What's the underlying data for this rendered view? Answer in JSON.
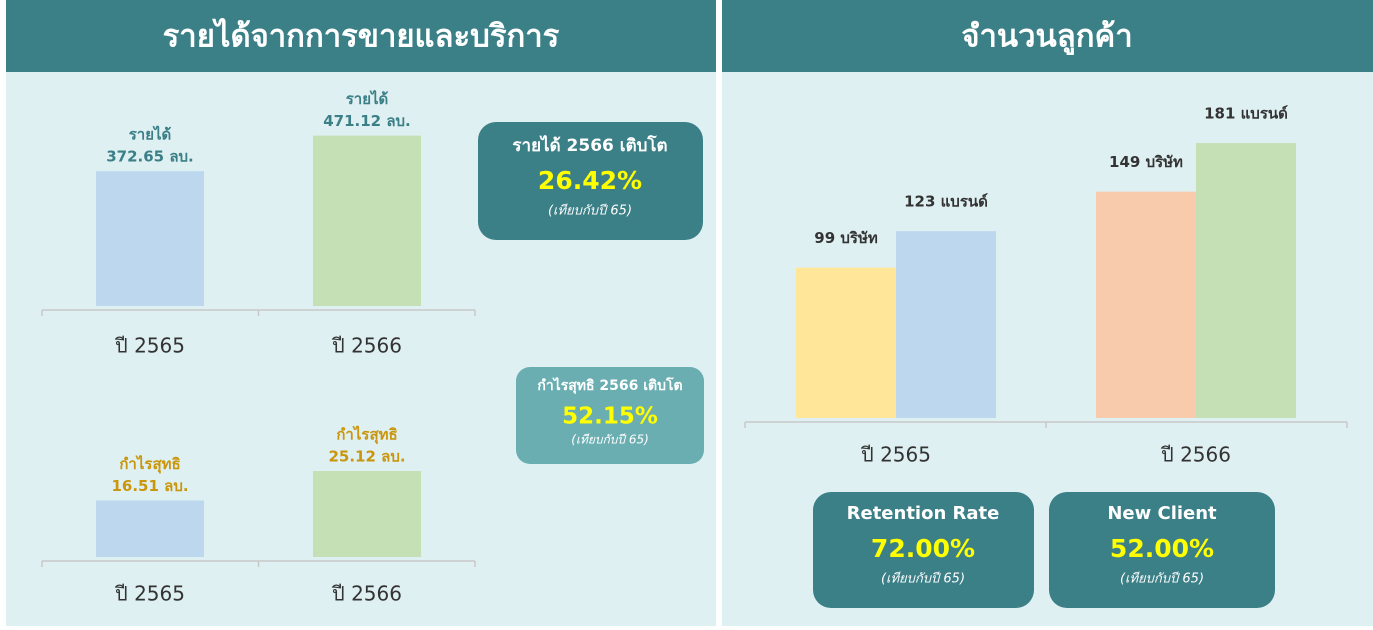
{
  "panels": [
    {
      "title": "รายได้จากการขายและบริการ"
    },
    {
      "title": "จำนวนลูกค้า"
    }
  ],
  "callouts": [
    {
      "title": "รายได้ 2566 เติบโต",
      "value": "26.42%",
      "note": "(เทียบกับปี 65)"
    },
    {
      "title": "กำไรสุทธิ 2566 เติบโต",
      "value": "52.15%",
      "note": "(เทียบกับปี 65)"
    },
    {
      "title": "Retention Rate",
      "value": "72.00%",
      "note": "(เทียบกับปี 65)"
    },
    {
      "title": "New Client",
      "value": "52.00%",
      "note": "(เทียบกับปี 65)"
    }
  ],
  "chart_data": [
    {
      "type": "bar",
      "categories": [
        "ปี 2565",
        "ปี 2566"
      ],
      "ylim": [
        0,
        600
      ],
      "label_color": "#3b7f87",
      "series": [
        {
          "name": "รายได้",
          "colors": [
            "#bdd7ee",
            "#c5e0b4"
          ],
          "values": [
            372.65,
            471.12
          ],
          "value_labels": [
            "372.65 ลบ.",
            "471.12 ลบ."
          ]
        }
      ]
    },
    {
      "type": "bar",
      "categories": [
        "ปี 2565",
        "ปี 2566"
      ],
      "ylim": [
        0,
        45
      ],
      "label_color": "#c9960c",
      "series": [
        {
          "name": "กำไรสุทธิ",
          "colors": [
            "#bdd7ee",
            "#c5e0b4"
          ],
          "values": [
            16.51,
            25.12
          ],
          "value_labels": [
            "16.51 ลบ.",
            "25.12 ลบ."
          ]
        }
      ]
    },
    {
      "type": "bar",
      "categories": [
        "ปี 2565",
        "ปี 2566"
      ],
      "ylim": [
        0,
        210
      ],
      "label_color": "#333333",
      "series": [
        {
          "colors": [
            "#ffe699",
            "#f8cbad"
          ],
          "values": [
            99,
            149
          ],
          "value_labels": [
            "99 บริษัท",
            "149 บริษัท"
          ]
        },
        {
          "colors": [
            "#bdd7ee",
            "#c5e0b4"
          ],
          "values": [
            123,
            181
          ],
          "value_labels": [
            "123 แบรนด์",
            "181 แบรนด์"
          ]
        }
      ]
    }
  ]
}
